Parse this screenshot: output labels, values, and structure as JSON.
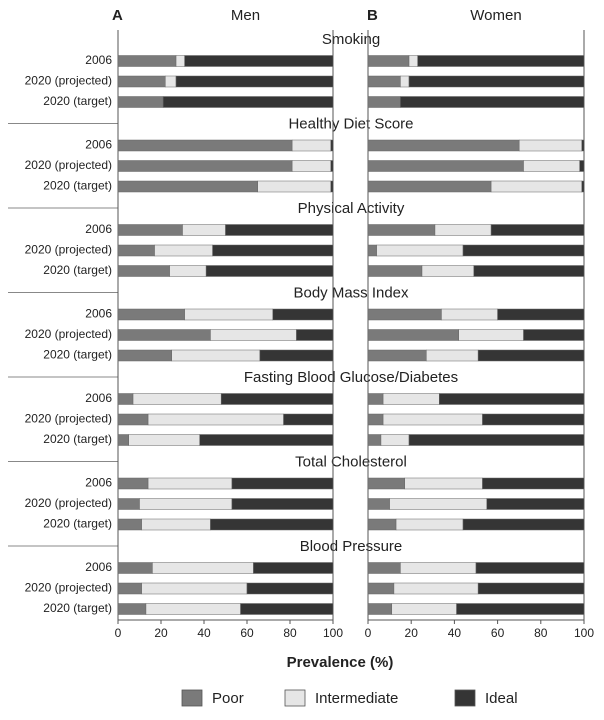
{
  "chart_data": {
    "type": "stacked-barh",
    "xlabel": "Prevalence (%)",
    "xlim": [
      0,
      100
    ],
    "xticks": [
      0,
      20,
      40,
      60,
      80,
      100
    ],
    "groups": [
      {
        "title": "Smoking",
        "categories": [
          "2006",
          "2020 (projected)",
          "2020 (target)"
        ]
      },
      {
        "title": "Healthy Diet Score",
        "categories": [
          "2006",
          "2020 (projected)",
          "2020 (target)"
        ]
      },
      {
        "title": "Physical Activity",
        "categories": [
          "2006",
          "2020 (projected)",
          "2020 (target)"
        ]
      },
      {
        "title": "Body Mass Index",
        "categories": [
          "2006",
          "2020 (projected)",
          "2020 (target)"
        ]
      },
      {
        "title": "Fasting Blood Glucose/Diabetes",
        "categories": [
          "2006",
          "2020 (projected)",
          "2020 (target)"
        ]
      },
      {
        "title": "Total Cholesterol",
        "categories": [
          "2006",
          "2020 (projected)",
          "2020 (target)"
        ]
      },
      {
        "title": "Blood Pressure",
        "categories": [
          "2006",
          "2020 (projected)",
          "2020 (target)"
        ]
      }
    ],
    "panels": [
      {
        "label": "A",
        "title": "Men",
        "series": [
          {
            "name": "Poor",
            "color": "#7a7a7a",
            "values": [
              27,
              22,
              21,
              81,
              81,
              65,
              30,
              17,
              24,
              31,
              43,
              25,
              7,
              14,
              5,
              14,
              10,
              11,
              16,
              11,
              13
            ]
          },
          {
            "name": "Intermediate",
            "color": "#e6e6e6",
            "values": [
              4,
              5,
              0,
              18,
              18,
              34,
              20,
              27,
              17,
              41,
              40,
              41,
              41,
              63,
              33,
              39,
              43,
              32,
              47,
              49,
              44
            ]
          },
          {
            "name": "Ideal",
            "color": "#353535",
            "values": [
              69,
              73,
              79,
              1,
              1,
              1,
              50,
              56,
              59,
              28,
              17,
              34,
              52,
              23,
              62,
              47,
              47,
              57,
              37,
              40,
              43
            ]
          }
        ]
      },
      {
        "label": "B",
        "title": "Women",
        "series": [
          {
            "name": "Poor",
            "color": "#7a7a7a",
            "values": [
              19,
              15,
              15,
              70,
              72,
              57,
              31,
              4,
              25,
              34,
              42,
              27,
              7,
              7,
              6,
              17,
              10,
              13,
              15,
              12,
              11
            ]
          },
          {
            "name": "Intermediate",
            "color": "#e6e6e6",
            "values": [
              4,
              4,
              0,
              29,
              26,
              42,
              26,
              40,
              24,
              26,
              30,
              24,
              26,
              46,
              13,
              36,
              45,
              31,
              35,
              39,
              30
            ]
          },
          {
            "name": "Ideal",
            "color": "#353535",
            "values": [
              77,
              81,
              85,
              1,
              2,
              1,
              43,
              56,
              51,
              40,
              28,
              49,
              67,
              47,
              81,
              47,
              45,
              56,
              50,
              49,
              59
            ]
          }
        ]
      }
    ]
  }
}
